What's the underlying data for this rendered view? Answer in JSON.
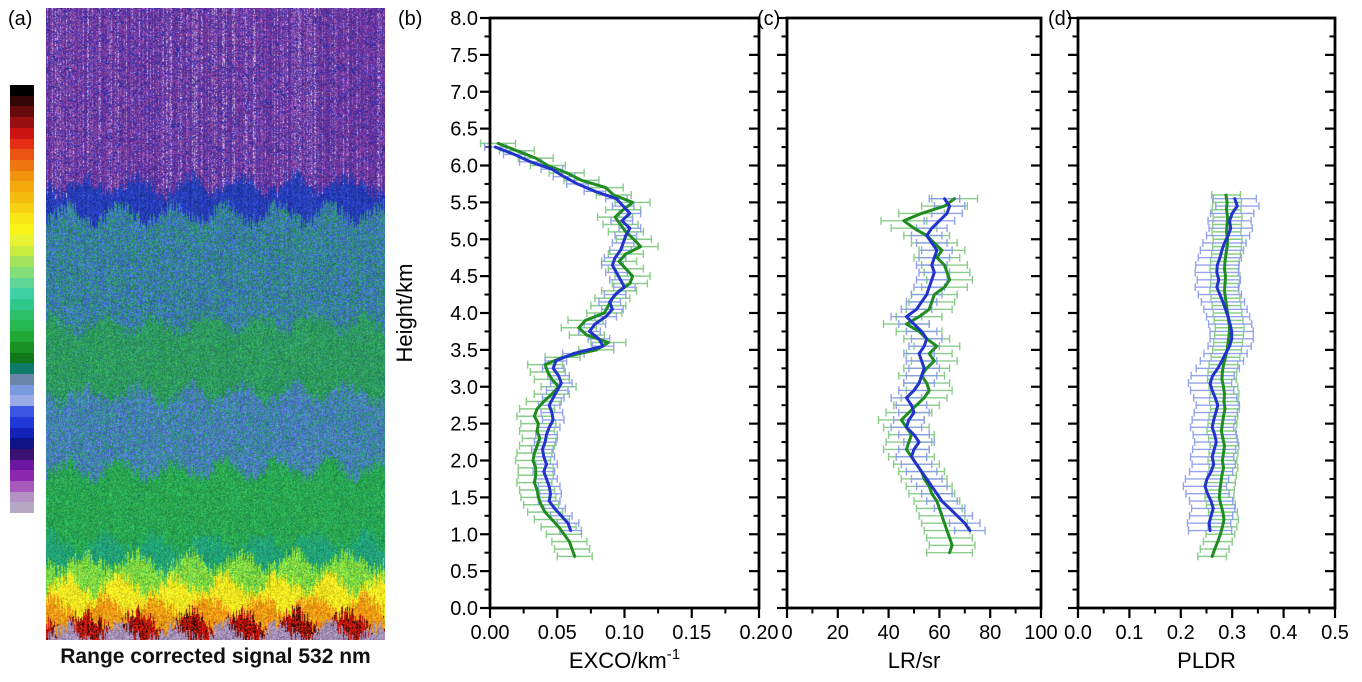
{
  "figure": {
    "panel_labels": {
      "a": "(a)",
      "b": "(b)",
      "c": "(c)",
      "d": "(d)"
    }
  },
  "panel_a": {
    "caption": "Range corrected signal 532 nm",
    "colorbar_colors": [
      "#000000",
      "#330505",
      "#660b0b",
      "#991010",
      "#cc1414",
      "#e62e14",
      "#eb5512",
      "#f07410",
      "#f2930e",
      "#f4a90c",
      "#f5bc10",
      "#f6d013",
      "#f8e616",
      "#f8f41a",
      "#e9f233",
      "#c8ec40",
      "#a3e45c",
      "#84de7c",
      "#5ed695",
      "#3fd0a4",
      "#2fc88c",
      "#2cc06a",
      "#28b850",
      "#20a836",
      "#189022",
      "#107818",
      "#0e7a68",
      "#6a85a8",
      "#7a9ae0",
      "#9aaae8",
      "#3a55e0",
      "#2038d8",
      "#1422b8",
      "#0c1488",
      "#3a1070",
      "#6a18a0",
      "#8f28b0",
      "#a85abc",
      "#b493c4",
      "#b8a8c8"
    ],
    "heatmap_bands": [
      {
        "until": 0.28,
        "colors": [
          "#5b2d8e",
          "#6d2a96",
          "#7e3b9e",
          "#2f2fa8",
          "#8a4aa6",
          "#a06cc0",
          "#cbbade"
        ]
      },
      {
        "until": 0.325,
        "colors": [
          "#1c2aa8",
          "#2433b8",
          "#2c44c4",
          "#1f3a9e",
          "#3355cc"
        ]
      },
      {
        "until": 0.5,
        "colors": [
          "#2e8678",
          "#3a62c8",
          "#2f8f62",
          "#4878d8",
          "#2e9a74",
          "#3560b8"
        ]
      },
      {
        "until": 0.61,
        "colors": [
          "#2e9a62",
          "#28a050",
          "#2e8b74",
          "#35aa58",
          "#249448"
        ]
      },
      {
        "until": 0.73,
        "colors": [
          "#4a6fd0",
          "#2e8b8b",
          "#5578d8",
          "#2f9a70",
          "#4868c8",
          "#6a86dd"
        ]
      },
      {
        "until": 0.845,
        "colors": [
          "#28a44a",
          "#20a060",
          "#2fb050",
          "#259a45",
          "#33b05a"
        ]
      },
      {
        "until": 0.875,
        "colors": [
          "#1e9a70",
          "#20a080",
          "#28a860"
        ]
      },
      {
        "until": 0.912,
        "colors": [
          "#5ec84a",
          "#7ed83e",
          "#9ae03c",
          "#44bb55"
        ]
      },
      {
        "until": 0.945,
        "colors": [
          "#e8d81a",
          "#f2e31e",
          "#f6ee22",
          "#ffee2a"
        ]
      },
      {
        "until": 0.968,
        "colors": [
          "#f0a012",
          "#ee8412",
          "#f4b018",
          "#e89014"
        ]
      },
      {
        "until": 0.988,
        "colors": [
          "#cc1410",
          "#a80e0c",
          "#e02010",
          "#1d0a06",
          "#8a0a08"
        ]
      },
      {
        "until": 1.0,
        "colors": [
          "#a18ab4",
          "#9a84ae",
          "#b0a0c0",
          "#8f7aa4"
        ]
      }
    ]
  },
  "y_axis": {
    "title": "Height/km",
    "min": 0,
    "max": 8,
    "major_step": 0.5,
    "minor_step": 0.25,
    "tick_labels": [
      "0.0",
      "0.5",
      "1.0",
      "1.5",
      "2.0",
      "2.5",
      "3.0",
      "3.5",
      "4.0",
      "4.5",
      "5.0",
      "5.5",
      "6.0",
      "6.5",
      "7.0",
      "7.5",
      "8.0"
    ]
  },
  "chart_data": [
    {
      "type": "line",
      "panel_label": "(b)",
      "xlabel_main": "EXCO/km",
      "xlabel_sup": "-1",
      "xlim": [
        0,
        0.2
      ],
      "x_tick_values": [
        0,
        0.05,
        0.1,
        0.15,
        0.2
      ],
      "x_tick_labels": [
        "0.00",
        "0.05",
        "0.10",
        "0.15",
        "0.20"
      ],
      "x_minor_ticks": [
        0.025,
        0.075,
        0.125,
        0.175
      ],
      "ylabel": "Height/km",
      "ylim": [
        0,
        8
      ],
      "series": [
        {
          "name": "green",
          "color": "#1e8c1e",
          "err_color": "#7ec87e",
          "xerr": 0.013,
          "height_start": 6.3,
          "height_step": -0.1,
          "values": [
            0.006,
            0.02,
            0.034,
            0.043,
            0.057,
            0.068,
            0.086,
            0.092,
            0.106,
            0.099,
            0.093,
            0.097,
            0.101,
            0.107,
            0.112,
            0.101,
            0.096,
            0.101,
            0.106,
            0.104,
            0.096,
            0.091,
            0.088,
            0.085,
            0.071,
            0.066,
            0.072,
            0.088,
            0.079,
            0.054,
            0.041,
            0.043,
            0.046,
            0.051,
            0.046,
            0.04,
            0.035,
            0.033,
            0.036,
            0.035,
            0.037,
            0.035,
            0.033,
            0.032,
            0.034,
            0.034,
            0.033,
            0.035,
            0.036,
            0.038,
            0.041,
            0.046,
            0.051,
            0.055,
            0.059,
            0.061,
            0.063
          ]
        },
        {
          "name": "blue",
          "color": "#2233cc",
          "err_color": "#8899ee",
          "xerr": 0.008,
          "height_start": 6.25,
          "height_step": -0.1,
          "values": [
            0.004,
            0.018,
            0.03,
            0.046,
            0.055,
            0.065,
            0.078,
            0.094,
            0.099,
            0.104,
            0.098,
            0.104,
            0.101,
            0.099,
            0.097,
            0.093,
            0.091,
            0.094,
            0.097,
            0.1,
            0.093,
            0.089,
            0.091,
            0.086,
            0.078,
            0.074,
            0.081,
            0.084,
            0.062,
            0.049,
            0.047,
            0.051,
            0.053,
            0.05,
            0.047,
            0.044,
            0.046,
            0.047,
            0.044,
            0.042,
            0.041,
            0.039,
            0.04,
            0.042,
            0.04,
            0.042,
            0.044,
            0.045,
            0.044,
            0.048,
            0.053,
            0.058,
            0.06
          ]
        }
      ]
    },
    {
      "type": "line",
      "panel_label": "(c)",
      "xlabel_main": "LR/sr",
      "xlabel_sup": "",
      "xlim": [
        0,
        100
      ],
      "x_tick_values": [
        0,
        20,
        40,
        60,
        80,
        100
      ],
      "x_tick_labels": [
        "0",
        "20",
        "40",
        "60",
        "80",
        "100"
      ],
      "x_minor_ticks": [
        10,
        30,
        50,
        70,
        90
      ],
      "ylabel": "Height/km",
      "ylim": [
        0,
        8
      ],
      "series": [
        {
          "name": "green",
          "color": "#1e8c1e",
          "err_color": "#7ec87e",
          "xerr": 9,
          "height_start": 5.55,
          "height_step": -0.1,
          "values": [
            66,
            62,
            53,
            46,
            50,
            55,
            58,
            61,
            59,
            62,
            63,
            64,
            62,
            58,
            57,
            56,
            52,
            47,
            52,
            55,
            59,
            56,
            58,
            55,
            53,
            55,
            56,
            54,
            51,
            48,
            45,
            47,
            49,
            48,
            47,
            49,
            51,
            53,
            54,
            56,
            57,
            59,
            60,
            61,
            62,
            63,
            64,
            65,
            64
          ]
        },
        {
          "name": "blue",
          "color": "#2233cc",
          "err_color": "#8899ee",
          "xerr": 6,
          "height_start": 5.55,
          "height_step": -0.1,
          "values": [
            62,
            64,
            63,
            60,
            57,
            55,
            57,
            59,
            58,
            57,
            58,
            57,
            56,
            55,
            53,
            51,
            47,
            50,
            53,
            55,
            54,
            52,
            53,
            54,
            53,
            52,
            50,
            47,
            49,
            50,
            48,
            47,
            50,
            52,
            50,
            49,
            51,
            53,
            55,
            57,
            59,
            61,
            64,
            67,
            70,
            72
          ]
        }
      ]
    },
    {
      "type": "line",
      "panel_label": "(d)",
      "xlabel_main": "PLDR",
      "xlabel_sup": "",
      "xlim": [
        0,
        0.5
      ],
      "x_tick_values": [
        0,
        0.1,
        0.2,
        0.3,
        0.4,
        0.5
      ],
      "x_tick_labels": [
        "0.0",
        "0.1",
        "0.2",
        "0.3",
        "0.4",
        "0.5"
      ],
      "x_minor_ticks": [
        0.05,
        0.15,
        0.25,
        0.35,
        0.45
      ],
      "ylabel": "Height/km",
      "ylim": [
        0,
        8
      ],
      "series": [
        {
          "name": "green",
          "color": "#1e8c1e",
          "err_color": "#7ec87e",
          "xerr": 0.028,
          "height_start": 5.6,
          "height_step": -0.1,
          "values": [
            0.288,
            0.29,
            0.289,
            0.291,
            0.29,
            0.289,
            0.291,
            0.29,
            0.288,
            0.286,
            0.285,
            0.287,
            0.286,
            0.285,
            0.287,
            0.289,
            0.291,
            0.293,
            0.295,
            0.294,
            0.292,
            0.29,
            0.287,
            0.283,
            0.281,
            0.28,
            0.283,
            0.285,
            0.284,
            0.286,
            0.283,
            0.281,
            0.279,
            0.282,
            0.285,
            0.283,
            0.281,
            0.283,
            0.28,
            0.278,
            0.276,
            0.275,
            0.278,
            0.282,
            0.284,
            0.281,
            0.277,
            0.272,
            0.266,
            0.261
          ]
        },
        {
          "name": "blue",
          "color": "#2233cc",
          "err_color": "#8899ee",
          "xerr": 0.042,
          "height_start": 5.55,
          "height_step": -0.1,
          "values": [
            0.305,
            0.31,
            0.3,
            0.295,
            0.297,
            0.292,
            0.285,
            0.28,
            0.276,
            0.271,
            0.27,
            0.274,
            0.27,
            0.276,
            0.282,
            0.287,
            0.292,
            0.296,
            0.299,
            0.299,
            0.295,
            0.287,
            0.28,
            0.272,
            0.262,
            0.257,
            0.261,
            0.267,
            0.272,
            0.268,
            0.264,
            0.261,
            0.266,
            0.269,
            0.265,
            0.261,
            0.264,
            0.259,
            0.251,
            0.247,
            0.252,
            0.259,
            0.263,
            0.259,
            0.255,
            0.257
          ]
        }
      ]
    }
  ]
}
